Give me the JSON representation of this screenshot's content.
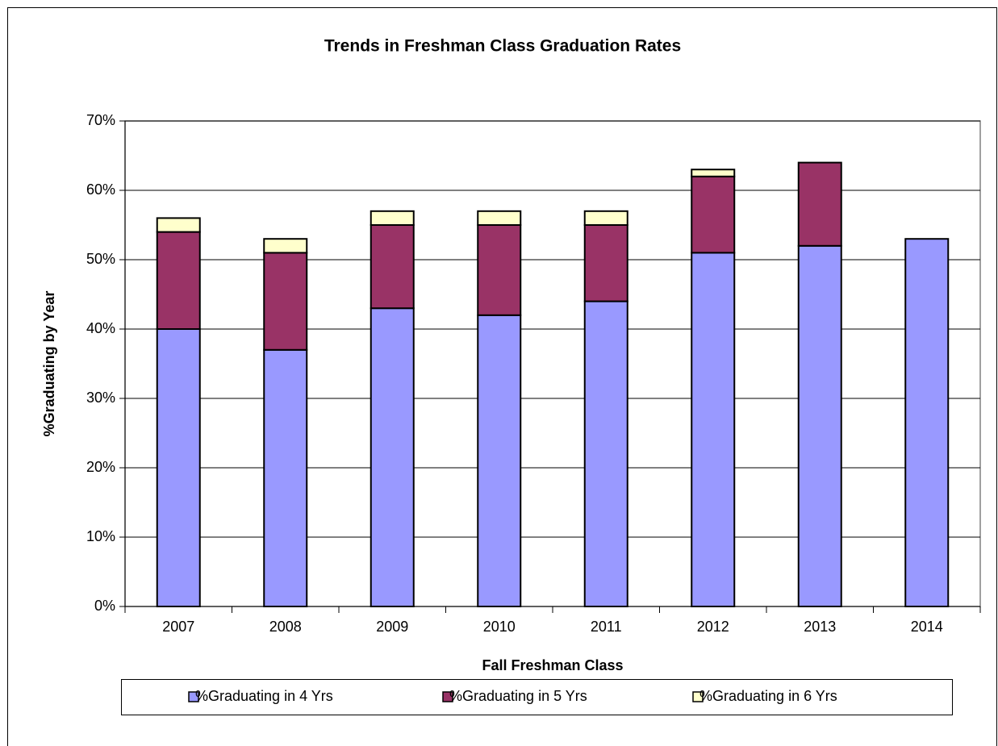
{
  "chart_data": {
    "type": "bar",
    "stacked": true,
    "title": "Trends in Freshman Class Graduation Rates",
    "x_label": "Fall Freshman Class",
    "y_label": "%Graduating by Year",
    "categories": [
      "2007",
      "2008",
      "2009",
      "2010",
      "2011",
      "2012",
      "2013",
      "2014"
    ],
    "series": [
      {
        "name": "%Graduating in 4 Yrs",
        "color": "#9999ff",
        "values": [
          40,
          37,
          43,
          42,
          44,
          51,
          52,
          53
        ]
      },
      {
        "name": "%Graduating in 5 Yrs",
        "color": "#993366",
        "values": [
          14,
          14,
          12,
          13,
          11,
          11,
          12,
          null
        ]
      },
      {
        "name": "%Graduating in 6 Yrs",
        "color": "#ffffcc",
        "values": [
          2,
          2,
          2,
          2,
          2,
          1,
          null,
          null
        ]
      }
    ],
    "ylim": [
      0,
      70
    ],
    "yticks": [
      {
        "value": 0,
        "label": "0%"
      },
      {
        "value": 10,
        "label": "10%"
      },
      {
        "value": 20,
        "label": "20%"
      },
      {
        "value": 30,
        "label": "30%"
      },
      {
        "value": 40,
        "label": "40%"
      },
      {
        "value": 50,
        "label": "50%"
      },
      {
        "value": 60,
        "label": "60%"
      },
      {
        "value": 70,
        "label": "70%"
      }
    ],
    "grid": true,
    "legend": "bottom"
  }
}
